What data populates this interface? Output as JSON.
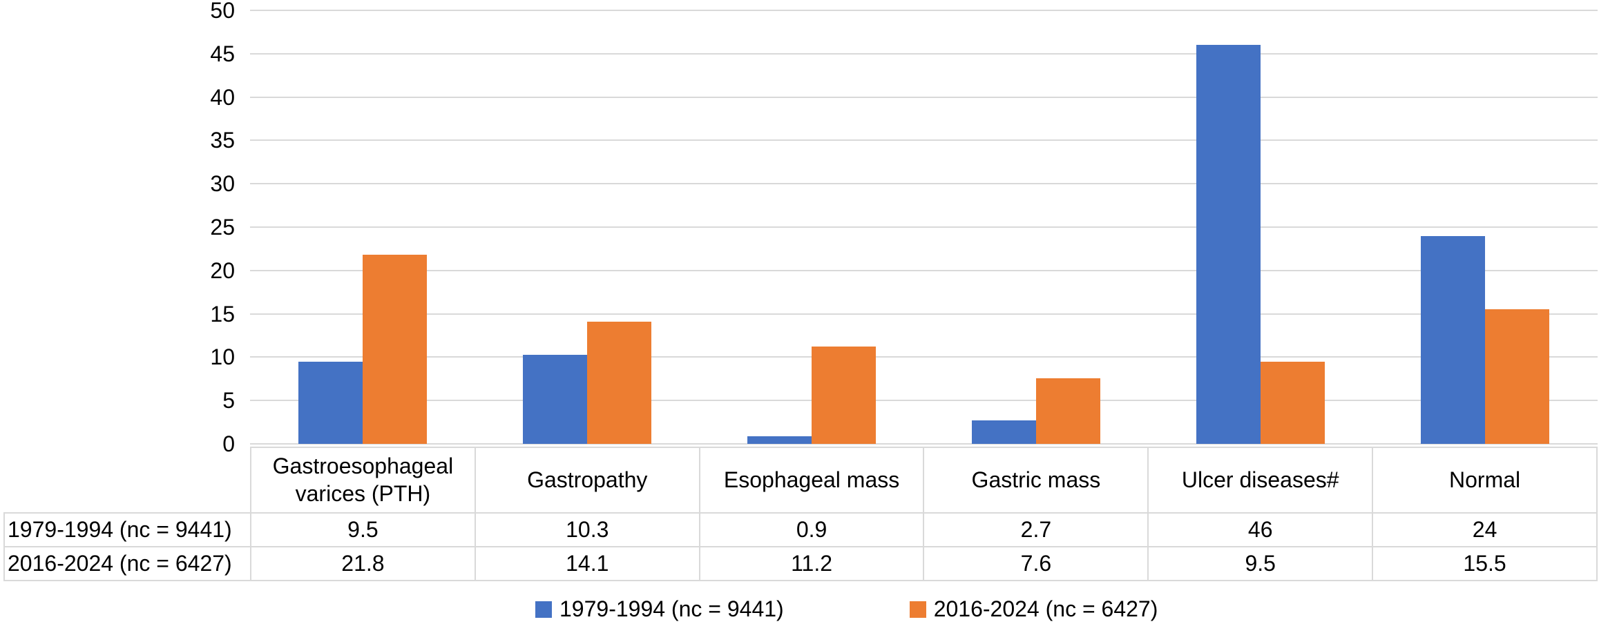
{
  "chart_data": {
    "type": "bar",
    "title": "",
    "xlabel": "",
    "ylabel": "",
    "categories": [
      "Gastroesophageal varices (PTH)",
      "Gastropathy",
      "Esophageal mass",
      "Gastric mass",
      "Ulcer diseases#",
      "Normal"
    ],
    "series": [
      {
        "name": "1979-1994 (nc = 9441)",
        "color": "#4472C4",
        "values": [
          9.5,
          10.3,
          0.9,
          2.7,
          46,
          24
        ]
      },
      {
        "name": "2016-2024 (nc = 6427)",
        "color": "#ED7D31",
        "values": [
          21.8,
          14.1,
          11.2,
          7.6,
          9.5,
          15.5
        ]
      }
    ],
    "ylim": [
      0,
      50
    ],
    "ytick_step": 5,
    "yticks": [
      0,
      5,
      10,
      15,
      20,
      25,
      30,
      35,
      40,
      45,
      50
    ],
    "grid": true,
    "legend_position": "bottom",
    "show_data_table": true
  },
  "colors": {
    "series1": "#4472C4",
    "series2": "#ED7D31",
    "gridline": "#D9D9D9",
    "table_border": "#D9D9D9",
    "text": "#000000",
    "background": "#FFFFFF"
  }
}
